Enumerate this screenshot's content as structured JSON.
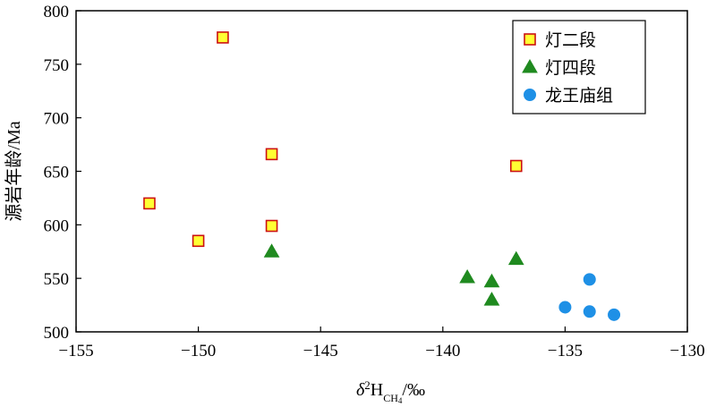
{
  "chart_data": {
    "type": "scatter",
    "xlabel": {
      "prefix": "δ",
      "sup": "2",
      "main": "H",
      "sub": "CH",
      "subsub": "4",
      "suffix": "/‰"
    },
    "ylabel": "源岩年龄/Ma",
    "xlim": [
      -155,
      -130
    ],
    "ylim": [
      500,
      800
    ],
    "xticks": [
      -155,
      -150,
      -145,
      -140,
      -135,
      -130
    ],
    "yticks": [
      500,
      550,
      600,
      650,
      700,
      750,
      800
    ],
    "xtick_labels": [
      "−155",
      "−150",
      "−145",
      "−140",
      "−135",
      "−130"
    ],
    "ytick_labels": [
      "500",
      "550",
      "600",
      "650",
      "700",
      "750",
      "800"
    ],
    "legend_position": "top-right",
    "series": [
      {
        "name": "灯二段",
        "marker": "square",
        "fill": "#ffff33",
        "stroke": "#cc1111",
        "points": [
          {
            "x": -149,
            "y": 775
          },
          {
            "x": -147,
            "y": 666
          },
          {
            "x": -152,
            "y": 620
          },
          {
            "x": -150,
            "y": 585
          },
          {
            "x": -147,
            "y": 599
          },
          {
            "x": -137,
            "y": 655
          }
        ]
      },
      {
        "name": "灯四段",
        "marker": "triangle",
        "fill": "#1f8a1f",
        "stroke": "#1f8a1f",
        "points": [
          {
            "x": -147,
            "y": 575
          },
          {
            "x": -139,
            "y": 551
          },
          {
            "x": -138,
            "y": 547
          },
          {
            "x": -138,
            "y": 530
          },
          {
            "x": -137,
            "y": 568
          }
        ]
      },
      {
        "name": "龙王庙组",
        "marker": "circle",
        "fill": "#1e90e6",
        "stroke": "#1e90e6",
        "points": [
          {
            "x": -134,
            "y": 549
          },
          {
            "x": -135,
            "y": 523
          },
          {
            "x": -134,
            "y": 519
          },
          {
            "x": -133,
            "y": 516
          }
        ]
      }
    ]
  }
}
